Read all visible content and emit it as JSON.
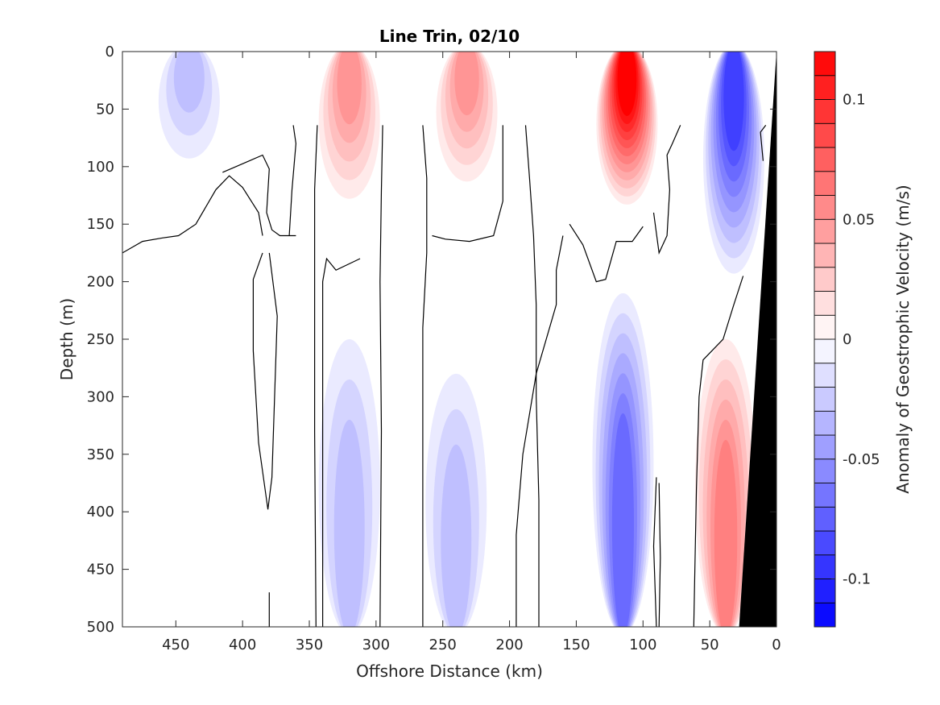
{
  "chart_data": {
    "type": "contourf",
    "title": "Line Trin, 02/10",
    "xlabel": "Offshore Distance (km)",
    "ylabel": "Depth (m)",
    "colorbar_label": "Anomaly of Geostrophic Velocity (m/s)",
    "xlim": [
      490,
      0
    ],
    "ylim": [
      0,
      500
    ],
    "x_reversed": true,
    "y_reversed": true,
    "xticks": [
      450,
      400,
      350,
      300,
      250,
      200,
      150,
      100,
      50,
      0
    ],
    "yticks": [
      0,
      50,
      100,
      150,
      200,
      250,
      300,
      350,
      400,
      450,
      500
    ],
    "colorbar": {
      "clim": [
        -0.12,
        0.12
      ],
      "ticks": [
        0.1,
        0.05,
        0,
        -0.05,
        -0.1
      ],
      "tick_labels": [
        "0.1",
        "0.05",
        "0",
        "-0.05",
        "-0.1"
      ],
      "levels": [
        -0.12,
        -0.11,
        -0.1,
        -0.09,
        -0.08,
        -0.07,
        -0.06,
        -0.05,
        -0.04,
        -0.03,
        -0.02,
        -0.01,
        0,
        0.01,
        0.02,
        0.03,
        0.04,
        0.05,
        0.06,
        0.07,
        0.08,
        0.09,
        0.1,
        0.11,
        0.12
      ],
      "colormap": "blue-white-red"
    },
    "bathymetry_color": "#000000",
    "bathymetry": [
      [
        0,
        0
      ],
      [
        0,
        500
      ],
      [
        28,
        500
      ]
    ],
    "features": [
      {
        "name": "surface jet",
        "x": 112,
        "z_top": 0,
        "z_bottom": 140,
        "peak": 0.12
      },
      {
        "name": "surface jet",
        "x": 232,
        "z_top": 0,
        "z_bottom": 120,
        "peak": 0.05
      },
      {
        "name": "surface jet",
        "x": 320,
        "z_top": 0,
        "z_bottom": 135,
        "peak": 0.05
      },
      {
        "name": "surface jet",
        "x": 32,
        "z_top": 0,
        "z_bottom": 200,
        "peak": -0.09
      },
      {
        "name": "deep flow",
        "x": 115,
        "z_top": 210,
        "z_bottom": 500,
        "peak": -0.07
      },
      {
        "name": "deep flow",
        "x": 38,
        "z_top": 250,
        "z_bottom": 500,
        "peak": 0.06
      },
      {
        "name": "deep flow",
        "x": 240,
        "z_top": 280,
        "z_bottom": 500,
        "peak": -0.03
      },
      {
        "name": "deep flow",
        "x": 320,
        "z_top": 250,
        "z_bottom": 500,
        "peak": -0.03
      },
      {
        "name": "surface flow",
        "x": 440,
        "z_top": 0,
        "z_bottom": 100,
        "peak": -0.03
      }
    ]
  }
}
